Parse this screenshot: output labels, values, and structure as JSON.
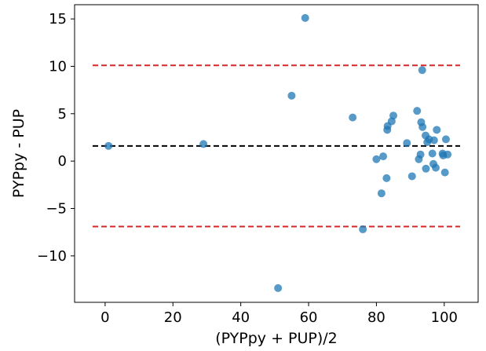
{
  "chart_data": {
    "type": "scatter",
    "title": "",
    "xlabel": "(PYPpy + PUP)/2",
    "ylabel": "PYPpy - PUP",
    "xlim": [
      -9,
      110
    ],
    "ylim": [
      -14.9,
      16.5
    ],
    "xticks": [
      0,
      20,
      40,
      60,
      80,
      100
    ],
    "yticks": [
      -10,
      -5,
      0,
      5,
      10,
      15
    ],
    "ytick_labels": [
      "−10",
      "−5",
      "0",
      "5",
      "10",
      "15"
    ],
    "grid": false,
    "reference_lines": [
      {
        "role": "upper-limit",
        "y": 10.1,
        "color": "#d62728",
        "style": "dashed"
      },
      {
        "role": "mean",
        "y": 1.6,
        "color": "#000000",
        "style": "dashed"
      },
      {
        "role": "lower-limit",
        "y": -6.9,
        "color": "#d62728",
        "style": "dashed"
      }
    ],
    "point_color": "#1f77b4",
    "points": [
      {
        "x": 1,
        "y": 1.6
      },
      {
        "x": 29,
        "y": 1.8
      },
      {
        "x": 51,
        "y": -13.4
      },
      {
        "x": 55,
        "y": 6.9
      },
      {
        "x": 59,
        "y": 15.1
      },
      {
        "x": 73,
        "y": 4.6
      },
      {
        "x": 76,
        "y": -7.2
      },
      {
        "x": 80,
        "y": 0.2
      },
      {
        "x": 81.5,
        "y": -3.4
      },
      {
        "x": 82,
        "y": 0.5
      },
      {
        "x": 83,
        "y": -1.8
      },
      {
        "x": 83.2,
        "y": 3.3
      },
      {
        "x": 83.3,
        "y": 3.7
      },
      {
        "x": 84.5,
        "y": 4.2
      },
      {
        "x": 85,
        "y": 4.8
      },
      {
        "x": 89,
        "y": 1.9
      },
      {
        "x": 90.5,
        "y": -1.6
      },
      {
        "x": 92,
        "y": 5.3
      },
      {
        "x": 92.5,
        "y": 0.2
      },
      {
        "x": 93,
        "y": 0.7
      },
      {
        "x": 93.5,
        "y": 9.6
      },
      {
        "x": 93.2,
        "y": 4.1
      },
      {
        "x": 93.6,
        "y": 3.6
      },
      {
        "x": 94.5,
        "y": 2.7
      },
      {
        "x": 94.6,
        "y": -0.8
      },
      {
        "x": 95,
        "y": 2.0
      },
      {
        "x": 95.5,
        "y": 2.3
      },
      {
        "x": 96.5,
        "y": 0.8
      },
      {
        "x": 96.8,
        "y": -0.3
      },
      {
        "x": 97,
        "y": 2.2
      },
      {
        "x": 97.5,
        "y": -0.7
      },
      {
        "x": 97.8,
        "y": 3.3
      },
      {
        "x": 99.5,
        "y": 0.8
      },
      {
        "x": 99.7,
        "y": 0.6
      },
      {
        "x": 100.2,
        "y": -1.2
      },
      {
        "x": 100.5,
        "y": 2.3
      },
      {
        "x": 101,
        "y": 0.7
      }
    ]
  }
}
